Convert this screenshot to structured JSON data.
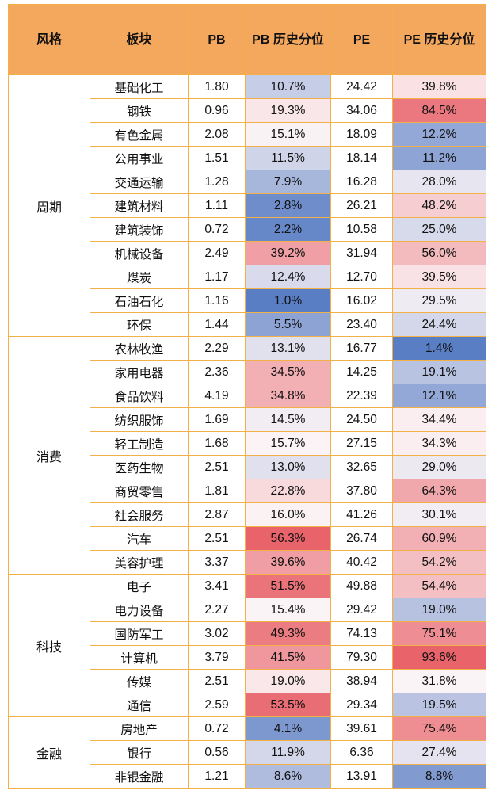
{
  "header": {
    "style": "风格",
    "sector": "板块",
    "pb": "PB",
    "pb_pct": "PB 历史分位",
    "pe": "PE",
    "pe_pct": "PE 历史分位"
  },
  "groups": [
    {
      "style": "周期",
      "rows": [
        {
          "sector": "基础化工",
          "pb": "1.80",
          "pb_pct": "10.7%",
          "pe": "24.42",
          "pe_pct": "39.8%"
        },
        {
          "sector": "钢铁",
          "pb": "0.96",
          "pb_pct": "19.3%",
          "pe": "34.06",
          "pe_pct": "84.5%"
        },
        {
          "sector": "有色金属",
          "pb": "2.08",
          "pb_pct": "15.1%",
          "pe": "18.09",
          "pe_pct": "12.2%"
        },
        {
          "sector": "公用事业",
          "pb": "1.51",
          "pb_pct": "11.5%",
          "pe": "18.14",
          "pe_pct": "11.2%"
        },
        {
          "sector": "交通运输",
          "pb": "1.28",
          "pb_pct": "7.9%",
          "pe": "16.28",
          "pe_pct": "28.0%"
        },
        {
          "sector": "建筑材料",
          "pb": "1.11",
          "pb_pct": "2.8%",
          "pe": "26.21",
          "pe_pct": "48.2%"
        },
        {
          "sector": "建筑装饰",
          "pb": "0.72",
          "pb_pct": "2.2%",
          "pe": "10.58",
          "pe_pct": "25.0%"
        },
        {
          "sector": "机械设备",
          "pb": "2.49",
          "pb_pct": "39.2%",
          "pe": "31.94",
          "pe_pct": "56.0%"
        },
        {
          "sector": "煤炭",
          "pb": "1.17",
          "pb_pct": "12.4%",
          "pe": "12.70",
          "pe_pct": "39.5%"
        },
        {
          "sector": "石油石化",
          "pb": "1.16",
          "pb_pct": "1.0%",
          "pe": "16.02",
          "pe_pct": "29.5%"
        },
        {
          "sector": "环保",
          "pb": "1.44",
          "pb_pct": "5.5%",
          "pe": "23.40",
          "pe_pct": "24.4%"
        }
      ]
    },
    {
      "style": "消费",
      "rows": [
        {
          "sector": "农林牧渔",
          "pb": "2.29",
          "pb_pct": "13.1%",
          "pe": "16.77",
          "pe_pct": "1.4%"
        },
        {
          "sector": "家用电器",
          "pb": "2.36",
          "pb_pct": "34.5%",
          "pe": "14.25",
          "pe_pct": "19.1%"
        },
        {
          "sector": "食品饮料",
          "pb": "4.19",
          "pb_pct": "34.8%",
          "pe": "22.39",
          "pe_pct": "12.1%"
        },
        {
          "sector": "纺织服饰",
          "pb": "1.69",
          "pb_pct": "14.5%",
          "pe": "24.50",
          "pe_pct": "34.4%"
        },
        {
          "sector": "轻工制造",
          "pb": "1.68",
          "pb_pct": "15.7%",
          "pe": "27.15",
          "pe_pct": "34.3%"
        },
        {
          "sector": "医药生物",
          "pb": "2.51",
          "pb_pct": "13.0%",
          "pe": "32.65",
          "pe_pct": "29.0%"
        },
        {
          "sector": "商贸零售",
          "pb": "1.81",
          "pb_pct": "22.8%",
          "pe": "37.80",
          "pe_pct": "64.3%"
        },
        {
          "sector": "社会服务",
          "pb": "2.87",
          "pb_pct": "16.0%",
          "pe": "41.26",
          "pe_pct": "30.1%"
        },
        {
          "sector": "汽车",
          "pb": "2.51",
          "pb_pct": "56.3%",
          "pe": "26.74",
          "pe_pct": "60.9%"
        },
        {
          "sector": "美容护理",
          "pb": "3.37",
          "pb_pct": "39.6%",
          "pe": "40.42",
          "pe_pct": "54.2%"
        }
      ]
    },
    {
      "style": "科技",
      "rows": [
        {
          "sector": "电子",
          "pb": "3.41",
          "pb_pct": "51.5%",
          "pe": "49.88",
          "pe_pct": "54.4%"
        },
        {
          "sector": "电力设备",
          "pb": "2.27",
          "pb_pct": "15.4%",
          "pe": "29.42",
          "pe_pct": "19.0%"
        },
        {
          "sector": "国防军工",
          "pb": "3.02",
          "pb_pct": "49.3%",
          "pe": "74.13",
          "pe_pct": "75.1%"
        },
        {
          "sector": "计算机",
          "pb": "3.79",
          "pb_pct": "41.5%",
          "pe": "79.30",
          "pe_pct": "93.6%"
        },
        {
          "sector": "传媒",
          "pb": "2.51",
          "pb_pct": "19.0%",
          "pe": "38.94",
          "pe_pct": "31.8%"
        },
        {
          "sector": "通信",
          "pb": "2.59",
          "pb_pct": "53.5%",
          "pe": "29.34",
          "pe_pct": "19.5%"
        }
      ]
    },
    {
      "style": "金融",
      "rows": [
        {
          "sector": "房地产",
          "pb": "0.72",
          "pb_pct": "4.1%",
          "pe": "39.61",
          "pe_pct": "75.4%"
        },
        {
          "sector": "银行",
          "pb": "0.56",
          "pb_pct": "11.9%",
          "pe": "6.36",
          "pe_pct": "27.4%"
        },
        {
          "sector": "非银金融",
          "pb": "1.21",
          "pb_pct": "8.6%",
          "pe": "13.91",
          "pe_pct": "8.8%"
        }
      ]
    }
  ],
  "colors": {
    "header_bg": "#f4a85e",
    "border": "#f2b046",
    "scale_low": "#5a7ec4",
    "scale_mid": "#fbf4f6",
    "scale_high": "#e8636a"
  }
}
